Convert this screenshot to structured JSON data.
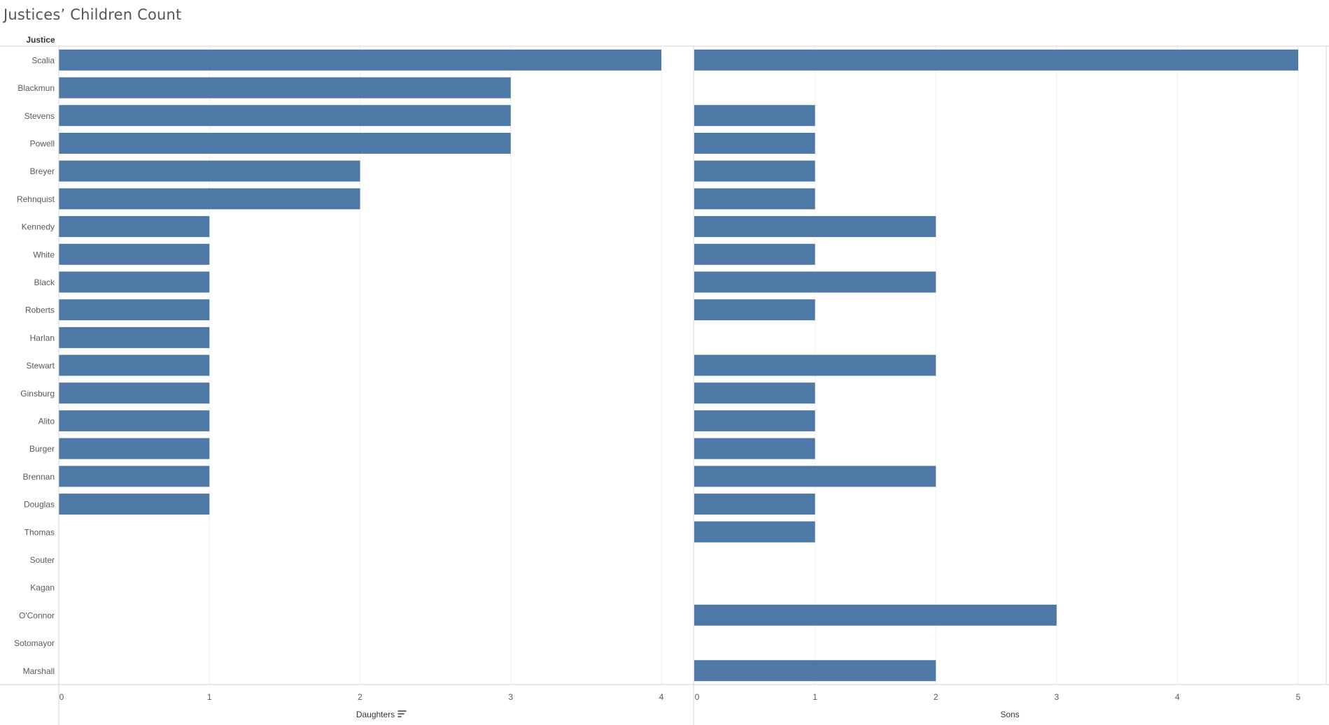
{
  "title": "Justices’ Children Count",
  "chart_data": [
    {
      "type": "bar",
      "orientation": "horizontal",
      "row_header": "Justice",
      "xlabel": "Daughters",
      "categories": [
        "Scalia",
        "Blackmun",
        "Stevens",
        "Powell",
        "Breyer",
        "Rehnquist",
        "Kennedy",
        "White",
        "Black",
        "Roberts",
        "Harlan",
        "Stewart",
        "Ginsburg",
        "Alito",
        "Burger",
        "Brennan",
        "Douglas",
        "Thomas",
        "Souter",
        "Kagan",
        "O'Connor",
        "Sotomayor",
        "Marshall"
      ],
      "values": [
        4,
        3,
        3,
        3,
        2,
        2,
        1,
        1,
        1,
        1,
        1,
        1,
        1,
        1,
        1,
        1,
        1,
        0,
        0,
        0,
        0,
        0,
        0
      ],
      "xlim": [
        0,
        4.2
      ],
      "ticks": [
        0,
        1,
        2,
        3,
        4
      ],
      "sorted": "descending",
      "grid": true
    },
    {
      "type": "bar",
      "orientation": "horizontal",
      "xlabel": "Sons",
      "categories": [
        "Scalia",
        "Blackmun",
        "Stevens",
        "Powell",
        "Breyer",
        "Rehnquist",
        "Kennedy",
        "White",
        "Black",
        "Roberts",
        "Harlan",
        "Stewart",
        "Ginsburg",
        "Alito",
        "Burger",
        "Brennan",
        "Douglas",
        "Thomas",
        "Souter",
        "Kagan",
        "O'Connor",
        "Sotomayor",
        "Marshall"
      ],
      "values": [
        5,
        0,
        1,
        1,
        1,
        1,
        2,
        1,
        2,
        1,
        0,
        2,
        1,
        1,
        1,
        2,
        1,
        1,
        0,
        0,
        3,
        0,
        2
      ],
      "xlim": [
        0,
        5.25
      ],
      "ticks": [
        0,
        1,
        2,
        3,
        4,
        5
      ],
      "grid": true
    }
  ],
  "colors": {
    "bar": "#4e79a7",
    "grid": "#eeeeee",
    "axis": "#d4d4d4",
    "label": "#595959",
    "header": "#333333"
  }
}
